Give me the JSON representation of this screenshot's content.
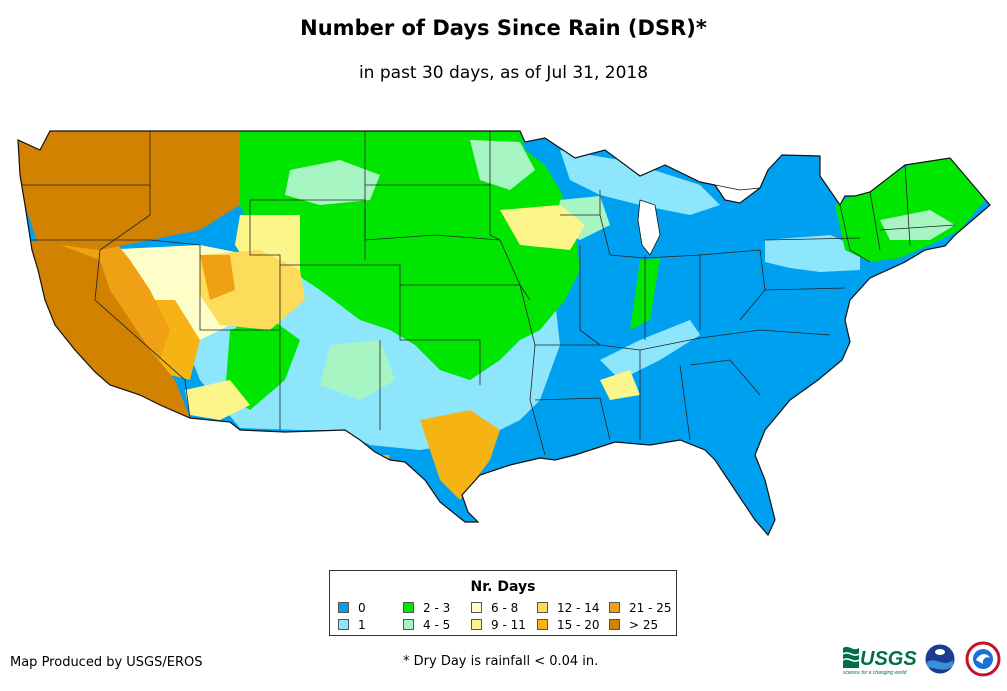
{
  "header": {
    "title": "Number of Days Since Rain (DSR)*",
    "subtitle": "in past 30 days, as of Jul 31, 2018"
  },
  "legend": {
    "title": "Nr. Days",
    "items": [
      {
        "label": "0",
        "color": "#00a0f0"
      },
      {
        "label": "1",
        "color": "#8ee6fc"
      },
      {
        "label": "2 - 3",
        "color": "#00e600"
      },
      {
        "label": "4 - 5",
        "color": "#a8f5c4"
      },
      {
        "label": "6 - 8",
        "color": "#fefec8"
      },
      {
        "label": "9 - 11",
        "color": "#fcf58a"
      },
      {
        "label": "12 - 14",
        "color": "#fcdc5a"
      },
      {
        "label": "15 - 20",
        "color": "#f5b414"
      },
      {
        "label": "21 - 25",
        "color": "#f0a014"
      },
      {
        "label": "> 25",
        "color": "#d08200"
      }
    ]
  },
  "footer": {
    "credit": "Map Produced by USGS/EROS",
    "footnote": "* Dry Day is rainfall < 0.04 in."
  },
  "logos": [
    {
      "name": "usgs-logo",
      "text": "USGS",
      "tagline": "science for a changing world"
    },
    {
      "name": "noaa-logo"
    },
    {
      "name": "nws-logo"
    }
  ]
}
